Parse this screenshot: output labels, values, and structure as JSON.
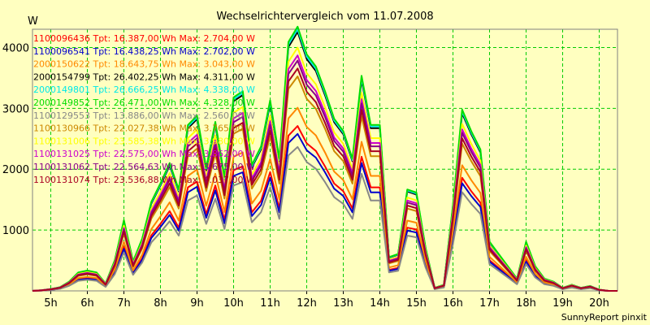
{
  "chart_data": {
    "type": "line",
    "title": "Wechselrichtervergleich vom 11.07.2008",
    "unit_label": "W",
    "credit": "SunnyReport pinxit",
    "background_color": "#ffffc0",
    "grid": true,
    "grid_color": "#00cc00",
    "legend_position": "top-left",
    "ylim": [
      0,
      4300
    ],
    "y_ticks": [
      "1000",
      "2000",
      "3000",
      "4000"
    ],
    "x_ticks": [
      "5h",
      "6h",
      "7h",
      "8h",
      "9h",
      "10h",
      "11h",
      "12h",
      "13h",
      "14h",
      "15h",
      "16h",
      "17h",
      "18h",
      "19h",
      "20h"
    ],
    "x": [
      "4:30",
      "4:45",
      "5:00",
      "5:15",
      "5:30",
      "5:45",
      "6:00",
      "6:15",
      "6:30",
      "6:45",
      "7:00",
      "7:15",
      "7:30",
      "7:45",
      "8:00",
      "8:15",
      "8:30",
      "8:45",
      "9:00",
      "9:15",
      "9:30",
      "9:45",
      "10:00",
      "10:15",
      "10:30",
      "10:45",
      "11:00",
      "11:15",
      "11:30",
      "11:45",
      "12:00",
      "12:15",
      "12:30",
      "12:45",
      "13:00",
      "13:15",
      "13:30",
      "13:45",
      "14:00",
      "14:15",
      "14:30",
      "14:45",
      "15:00",
      "15:15",
      "15:30",
      "15:45",
      "16:00",
      "16:15",
      "16:30",
      "16:45",
      "17:00",
      "17:15",
      "17:30",
      "17:45",
      "18:00",
      "18:15",
      "18:30",
      "18:45",
      "19:00",
      "19:15",
      "19:30",
      "19:45",
      "20:00",
      "20:15",
      "20:30"
    ],
    "base_profile": [
      0,
      10,
      30,
      60,
      150,
      300,
      330,
      300,
      120,
      500,
      1150,
      480,
      850,
      1450,
      1750,
      2080,
      1650,
      2700,
      2850,
      2000,
      2750,
      1850,
      3150,
      3250,
      2050,
      2350,
      3100,
      2150,
      4050,
      4300,
      3850,
      3650,
      3250,
      2800,
      2600,
      2150,
      3500,
      2700,
      2700,
      550,
      600,
      1650,
      1600,
      700,
      50,
      100,
      1400,
      2950,
      2600,
      2300,
      800,
      600,
      400,
      200,
      800,
      400,
      200,
      150,
      50,
      100,
      50,
      80,
      20,
      0,
      0
    ],
    "series": [
      {
        "name": "1100096436",
        "legend": "1100096436 Tpt: 16.387,00 Wh Max: 2.704,00 W",
        "color": "#ff0000",
        "scale": 0.63
      },
      {
        "name": "1100096541",
        "legend": "1100096541 Tpt: 16.438,25 Wh Max: 2.702,00 W",
        "color": "#0000cc",
        "scale": 0.6
      },
      {
        "name": "2000150622",
        "legend": "2000150622 Tpt: 18.643,75 Wh Max: 3.043,00 W",
        "color": "#ff8800",
        "scale": 0.7
      },
      {
        "name": "2000154799",
        "legend": "2000154799 Tpt: 26.402,25 Wh Max: 4.311,00 W",
        "color": "#000000",
        "scale": 0.99
      },
      {
        "name": "2000149801",
        "legend": "2000149801 Tpt: 26.666,25 Wh Max: 4.338,00 W",
        "color": "#00e8e8",
        "scale": 1.0
      },
      {
        "name": "2000149852",
        "legend": "2000149852 Tpt: 26.471,00 Wh Max: 4.328,00 W",
        "color": "#00dd00",
        "scale": 1.01
      },
      {
        "name": "1100129553",
        "legend": "1100129553 Tpt: 13.886,00 Wh Max: 2.560,00 W",
        "color": "#888888",
        "scale": 0.55
      },
      {
        "name": "1100130966",
        "legend": "1100130966 Tpt: 22.027,38 Wh Max: 3.765,00 W",
        "color": "#cc8800",
        "scale": 0.82
      },
      {
        "name": "1100131006",
        "legend": "1100131006 Tpt: 23.585,38 Wh Max: 3.980,00 W",
        "color": "#ffff00",
        "scale": 0.93
      },
      {
        "name": "1100131025",
        "legend": "1100131025 Tpt: 22.575,00 Wh Max: 3.862,00 W",
        "color": "#cc00cc",
        "scale": 0.9
      },
      {
        "name": "1100131062",
        "legend": "1100131062 Tpt: 22.564,63 Wh Max: 3.675,00 W",
        "color": "#880088",
        "scale": 0.88
      },
      {
        "name": "1100131074",
        "legend": "1100131074 Tpt: 23.536,88 Wh Max: 4.037,00 W",
        "color": "#aa0022",
        "scale": 0.85
      }
    ]
  }
}
